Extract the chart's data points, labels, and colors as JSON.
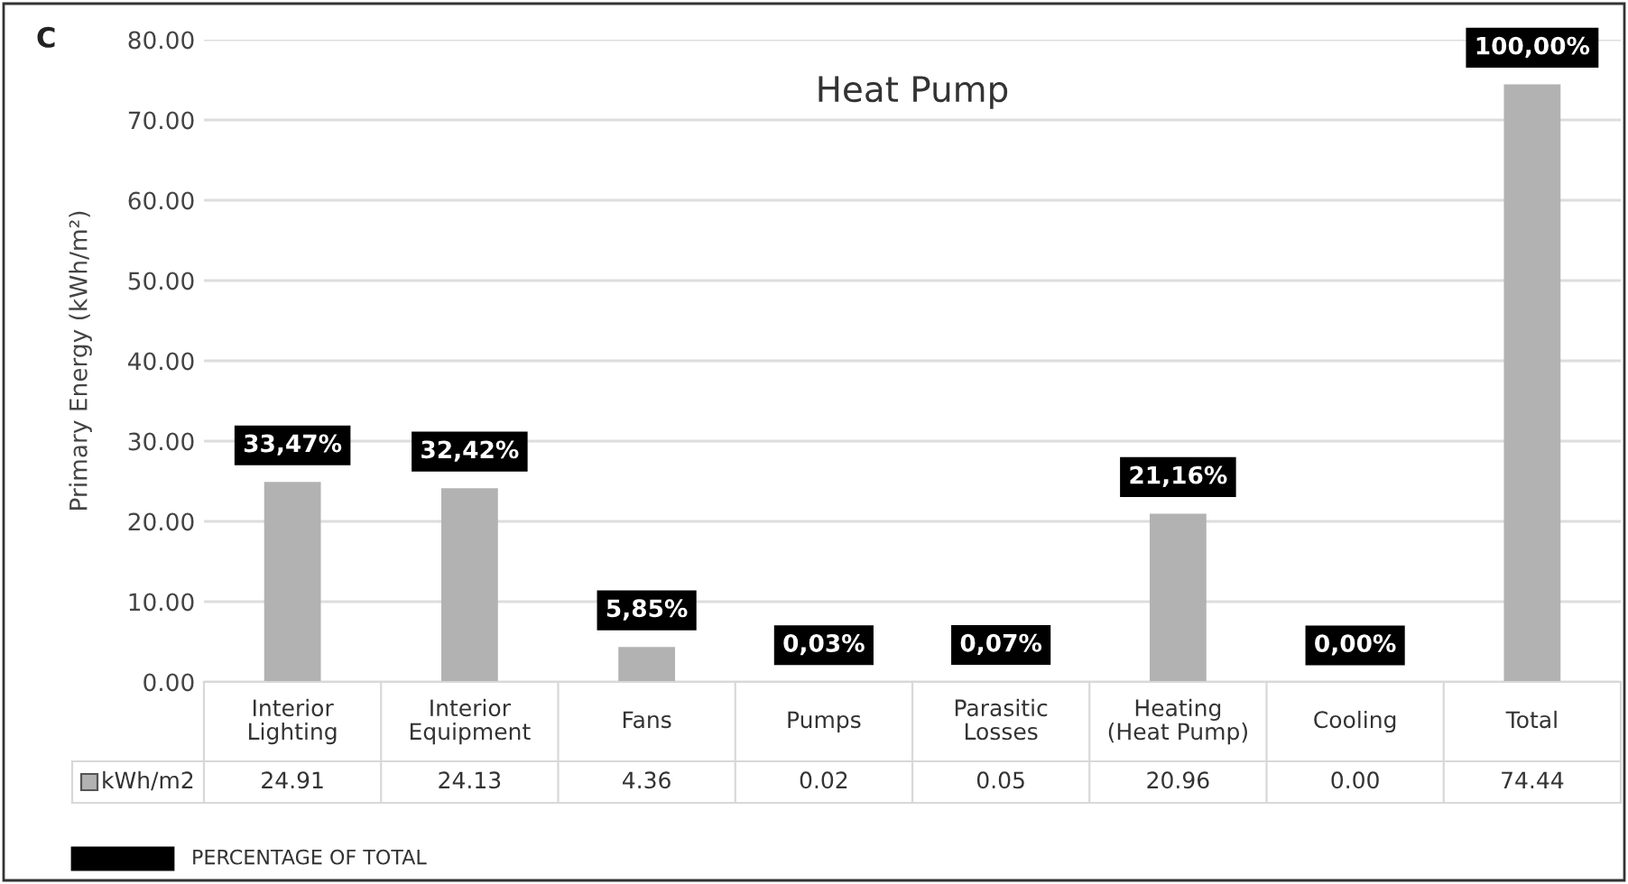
{
  "chart_data": {
    "type": "bar",
    "title": "Heat Pump",
    "ylabel": "Primary Energy (kWh/m²)",
    "categories": [
      "Interior Lighting",
      "Interior Equipment",
      "Fans",
      "Pumps",
      "Parasitic Losses",
      "Heating (Heat Pump)",
      "Cooling",
      "Total"
    ],
    "series": [
      {
        "name": "kWh/m2",
        "color": "#b2b2b2",
        "values": [
          24.91,
          24.13,
          4.36,
          0.02,
          0.05,
          20.96,
          0.0,
          74.44
        ],
        "value_labels": [
          "24.91",
          "24.13",
          "4.36",
          "0.02",
          "0.05",
          "20.96",
          "0.00",
          "74.44"
        ]
      }
    ],
    "ylim": [
      0,
      80
    ],
    "yticks": [
      {
        "value": 0,
        "label": "0.00"
      },
      {
        "value": 10,
        "label": "10.00"
      },
      {
        "value": 20,
        "label": "20.00"
      },
      {
        "value": 30,
        "label": "30.00"
      },
      {
        "value": 40,
        "label": "40.00"
      },
      {
        "value": 50,
        "label": "50.00"
      },
      {
        "value": 60,
        "label": "60.00"
      },
      {
        "value": 70,
        "label": "70.00"
      },
      {
        "value": 80,
        "label": "80.00"
      }
    ],
    "grid": "y",
    "annotations": [
      "C",
      "PERCENTAGE OF TOTAL",
      {
        "text": "33,47%",
        "x": "Interior Lighting",
        "y": 24.91
      },
      {
        "text": "32,42%",
        "x": "Interior Equipment",
        "y": 24.13
      },
      {
        "text": "5,85%",
        "x": "Fans",
        "y": 4.36
      },
      {
        "text": "0,03%",
        "x": "Pumps",
        "y": 0.02
      },
      {
        "text": "0,07%",
        "x": "Parasitic Losses",
        "y": 0.05
      },
      {
        "text": "21,16%",
        "x": "Heating (Heat Pump)",
        "y": 20.96
      },
      {
        "text": "0,00%",
        "x": "Cooling",
        "y": 0.0
      },
      {
        "text": "100,00%",
        "x": "Total",
        "y": 74.44
      }
    ]
  }
}
